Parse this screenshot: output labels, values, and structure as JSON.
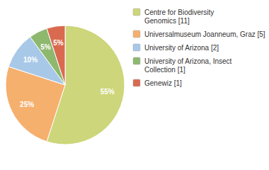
{
  "chart_data": {
    "type": "pie",
    "categories": [
      "Centre for Biodiversity\nGenomics [11]",
      "Universalmuseum Joanneum, Graz [5]",
      "University of Arizona [2]",
      "University of Arizona, Insect\nCollection [1]",
      "Genewiz [1]"
    ],
    "values": [
      55,
      25,
      10,
      5,
      5
    ],
    "value_labels": [
      "55%",
      "25%",
      "10%",
      "5%",
      "5%"
    ],
    "colors": [
      "#cdd67a",
      "#f5b06e",
      "#a8c8e8",
      "#8db86e",
      "#d96a50"
    ],
    "data_labels": true,
    "legend": "right"
  }
}
